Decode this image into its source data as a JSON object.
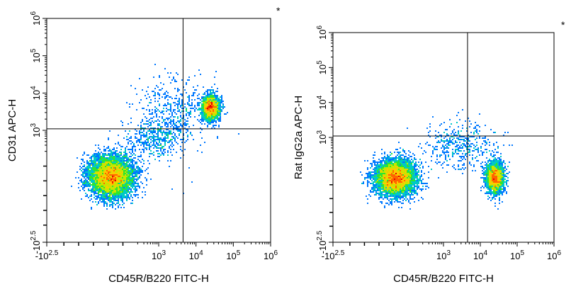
{
  "chart_data": [
    {
      "type": "scatter",
      "subtype": "flow-cytometry-density",
      "xlabel": "CD45R/B220 FITC-H",
      "ylabel": "CD31 APC-H",
      "scale": "biexponential",
      "xlim": [
        -316,
        1000000
      ],
      "ylim": [
        -316,
        1000000
      ],
      "x_ticks": [
        {
          "base": "-10",
          "exp": "2.5",
          "value": -316
        },
        {
          "base": "10",
          "exp": "3",
          "value": 1000
        },
        {
          "base": "10",
          "exp": "4",
          "value": 10000
        },
        {
          "base": "10",
          "exp": "5",
          "value": 100000
        },
        {
          "base": "10",
          "exp": "6",
          "value": 1000000
        }
      ],
      "y_ticks": [
        {
          "base": "-10",
          "exp": "2.5",
          "value": -316
        },
        {
          "base": "10",
          "exp": "3",
          "value": 1000
        },
        {
          "base": "10",
          "exp": "4",
          "value": 10000
        },
        {
          "base": "10",
          "exp": "5",
          "value": 100000
        },
        {
          "base": "10",
          "exp": "6",
          "value": 1000000
        }
      ],
      "quadrant_gate": {
        "x": 4500,
        "y": 1100
      },
      "marker_text": "*",
      "populations": [
        {
          "x": 120,
          "y": 130,
          "weight": 0.68,
          "spread_x": 0.55,
          "spread_y": 0.5
        },
        {
          "x": 25000,
          "y": 4000,
          "weight": 0.22,
          "spread_x": 0.22,
          "spread_y": 0.3
        },
        {
          "x": 2500,
          "y": 3000,
          "weight": 0.05,
          "spread_x": 0.9,
          "spread_y": 0.9
        },
        {
          "x": 800,
          "y": 600,
          "weight": 0.05,
          "spread_x": 0.7,
          "spread_y": 0.5
        }
      ],
      "colormap": [
        "#0000c8",
        "#0078ff",
        "#00c8c8",
        "#2ee62e",
        "#c8e600",
        "#ffc800",
        "#ff6400",
        "#e60000"
      ]
    },
    {
      "type": "scatter",
      "subtype": "flow-cytometry-density",
      "xlabel": "CD45R/B220 FITC-H",
      "ylabel": "Rat IgG2a APC-H",
      "scale": "biexponential",
      "xlim": [
        -316,
        1000000
      ],
      "ylim": [
        -316,
        1000000
      ],
      "x_ticks": [
        {
          "base": "-10",
          "exp": "2.5",
          "value": -316
        },
        {
          "base": "10",
          "exp": "3",
          "value": 1000
        },
        {
          "base": "10",
          "exp": "4",
          "value": 10000
        },
        {
          "base": "10",
          "exp": "5",
          "value": 100000
        },
        {
          "base": "10",
          "exp": "6",
          "value": 1000000
        }
      ],
      "y_ticks": [
        {
          "base": "-10",
          "exp": "2.5",
          "value": -316
        },
        {
          "base": "10",
          "exp": "3",
          "value": 1000
        },
        {
          "base": "10",
          "exp": "4",
          "value": 10000
        },
        {
          "base": "10",
          "exp": "5",
          "value": 100000
        },
        {
          "base": "10",
          "exp": "6",
          "value": 1000000
        }
      ],
      "quadrant_gate": {
        "x": 4500,
        "y": 1100
      },
      "marker_text": "*",
      "populations": [
        {
          "x": 110,
          "y": 150,
          "weight": 0.68,
          "spread_x": 0.5,
          "spread_y": 0.45
        },
        {
          "x": 25000,
          "y": 150,
          "weight": 0.27,
          "spread_x": 0.22,
          "spread_y": 0.4
        },
        {
          "x": 3000,
          "y": 600,
          "weight": 0.05,
          "spread_x": 0.9,
          "spread_y": 0.6
        }
      ],
      "colormap": [
        "#0000c8",
        "#0078ff",
        "#00c8c8",
        "#2ee62e",
        "#c8e600",
        "#ffc800",
        "#ff6400",
        "#e60000"
      ]
    }
  ]
}
